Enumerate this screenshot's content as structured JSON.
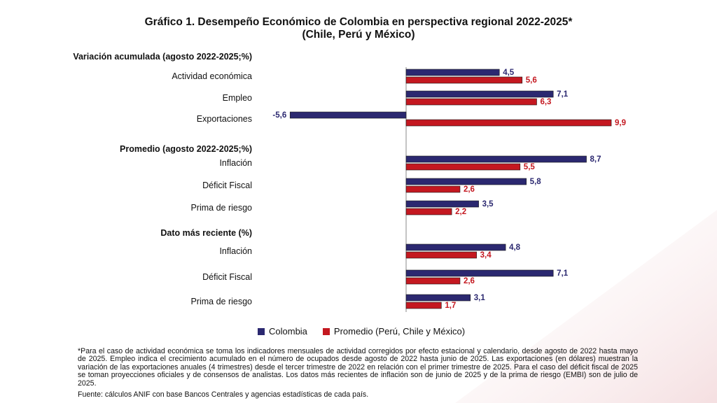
{
  "title_line1": "Gráfico 1. Desempeño Económico de Colombia en perspectiva regional 2022-2025*",
  "title_line2": "(Chile, Perú y México)",
  "colors": {
    "colombia": "#2b2870",
    "promedio": "#c41820"
  },
  "legend": {
    "colombia": "Colombia",
    "promedio": "Promedio (Perú, Chile y México)"
  },
  "chart_data": {
    "type": "bar",
    "orientation": "horizontal",
    "series": [
      {
        "name": "Colombia",
        "color": "#2b2870"
      },
      {
        "name": "Promedio (Perú, Chile y México)",
        "color": "#c41820"
      }
    ],
    "groups": [
      {
        "heading": "Variación acumulada (agosto 2022-2025;%)",
        "items": [
          {
            "label": "Actividad económica",
            "values": [
              4.5,
              5.6
            ],
            "value_labels": [
              "4,5",
              "5,6"
            ]
          },
          {
            "label": "Empleo",
            "values": [
              7.1,
              6.3
            ],
            "value_labels": [
              "7,1",
              "6,3"
            ]
          },
          {
            "label": "Exportaciones",
            "values": [
              -5.6,
              9.9
            ],
            "value_labels": [
              "-5,6",
              "9,9"
            ]
          }
        ]
      },
      {
        "heading": "Promedio (agosto 2022-2025;%)",
        "items": [
          {
            "label": "Inflación",
            "values": [
              8.7,
              5.5
            ],
            "value_labels": [
              "8,7",
              "5,5"
            ]
          },
          {
            "label": "Déficit Fiscal",
            "values": [
              5.8,
              2.6
            ],
            "value_labels": [
              "5,8",
              "2,6"
            ]
          },
          {
            "label": "Prima de riesgo",
            "values": [
              3.5,
              2.2
            ],
            "value_labels": [
              "3,5",
              "2,2"
            ]
          }
        ]
      },
      {
        "heading": "Dato más reciente (%)",
        "items": [
          {
            "label": "Inflación",
            "values": [
              4.8,
              3.4
            ],
            "value_labels": [
              "4,8",
              "3,4"
            ]
          },
          {
            "label": "Déficit Fiscal",
            "values": [
              7.1,
              2.6
            ],
            "value_labels": [
              "7,1",
              "2,6"
            ]
          },
          {
            "label": "Prima de riesgo",
            "values": [
              3.1,
              1.7
            ],
            "value_labels": [
              "3,1",
              "1,7"
            ]
          }
        ]
      }
    ]
  },
  "notes": "*Para el caso de actividad económica se toma los indicadores mensuales de actividad corregidos por efecto estacional y calendario, desde agosto de 2022 hasta mayo de 2025. Empleo indica el crecimiento acumulado en el número de ocupados desde agosto de 2022 hasta junio de 2025. Las exportaciones (en dólares) muestran la variación de las exportaciones anuales (4 trimestres) desde el tercer trimestre de 2022 en relación con el primer trimestre de 2025. Para el caso del déficit fiscal de 2025 se toman proyecciones oficiales y de consensos de analistas. Los datos más recientes de inflación son de junio de 2025 y de la prima de riesgo (EMBI) son de julio de 2025.",
  "source": "Fuente: cálculos ANIF con base Bancos Centrales y agencias estadísticas de cada país."
}
